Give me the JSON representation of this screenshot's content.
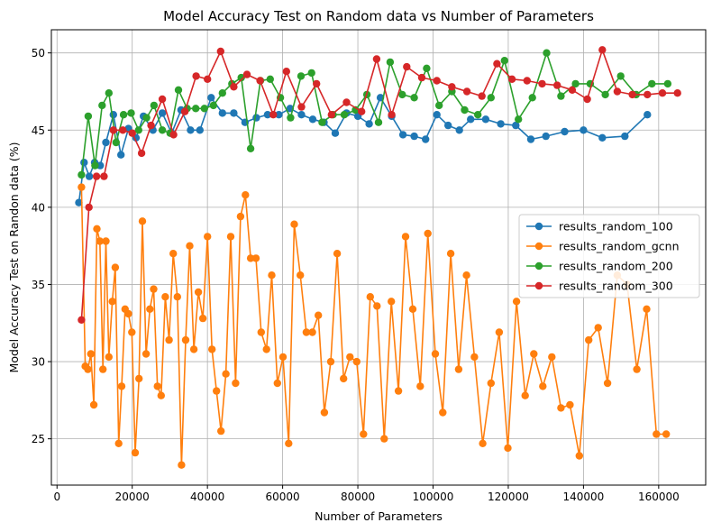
{
  "chart_data": {
    "type": "line",
    "title": "Model Accuracy Test on Random data vs Number of Parameters",
    "xlabel": "Number of Parameters",
    "ylabel": "Model Accuracy Test on Randon data (%)",
    "xlim": [
      -1500,
      172500
    ],
    "ylim": [
      22,
      51.5
    ],
    "xticks": [
      0,
      20000,
      40000,
      60000,
      80000,
      100000,
      120000,
      140000,
      160000
    ],
    "yticks": [
      25,
      30,
      35,
      40,
      45,
      50
    ],
    "grid": true,
    "legend_position": "center-right",
    "series": [
      {
        "name": "results_random_100",
        "color": "#1f77b4",
        "x": [
          5800,
          7200,
          8600,
          10000,
          11500,
          13000,
          15000,
          17000,
          19000,
          21000,
          23000,
          25500,
          28000,
          30500,
          33000,
          35500,
          38000,
          41000,
          44000,
          47000,
          50000,
          53000,
          56000,
          59000,
          62000,
          65000,
          68000,
          71000,
          74000,
          77000,
          80000,
          83000,
          86000,
          89000,
          92000,
          95000,
          98000,
          101000,
          104000,
          107000,
          110000,
          114000,
          118000,
          122000,
          126000,
          130000,
          135000,
          140000,
          145000,
          151000,
          157000
        ],
        "y": [
          40.3,
          42.9,
          42.0,
          42.9,
          42.7,
          44.2,
          46.0,
          43.4,
          45.1,
          44.5,
          45.9,
          45.0,
          46.1,
          44.8,
          46.3,
          45.0,
          45.0,
          47.1,
          46.1,
          46.1,
          45.5,
          45.8,
          46.0,
          46.0,
          46.4,
          46.0,
          45.7,
          45.5,
          44.8,
          46.1,
          45.9,
          45.4,
          47.1,
          45.9,
          44.7,
          44.6,
          44.4,
          46.0,
          45.3,
          45.0,
          45.7,
          45.7,
          45.4,
          45.3,
          44.4,
          44.6,
          44.9,
          45.0,
          44.5,
          44.6,
          46.0
        ]
      },
      {
        "name": "results_random_gcnn",
        "color": "#ff7f0e",
        "x": [
          6500,
          7500,
          8200,
          9000,
          9800,
          10600,
          11400,
          12200,
          13000,
          13800,
          14700,
          15500,
          16400,
          17200,
          18100,
          19000,
          19900,
          20800,
          21800,
          22700,
          23700,
          24700,
          25700,
          26700,
          27700,
          28800,
          29800,
          30900,
          32000,
          33100,
          34200,
          35300,
          36400,
          37600,
          38800,
          40000,
          41200,
          42400,
          43600,
          44900,
          46200,
          47500,
          48800,
          50100,
          51500,
          52900,
          54300,
          55700,
          57100,
          58600,
          60100,
          61600,
          63100,
          64700,
          66300,
          67900,
          69500,
          71100,
          72800,
          74500,
          76200,
          77900,
          79700,
          81500,
          83300,
          85100,
          87000,
          88900,
          90800,
          92700,
          94600,
          96600,
          98600,
          100600,
          102600,
          104700,
          106800,
          108900,
          111000,
          113200,
          115400,
          117600,
          119900,
          122200,
          124500,
          126800,
          129200,
          131600,
          134000,
          136400,
          138900,
          141400,
          143900,
          146400,
          149000,
          151600,
          154200,
          156800,
          159400,
          162000
        ],
        "y": [
          41.3,
          29.7,
          29.5,
          30.5,
          27.2,
          38.6,
          37.8,
          29.5,
          37.8,
          30.3,
          33.9,
          36.1,
          24.7,
          28.4,
          33.4,
          33.1,
          31.9,
          24.1,
          28.9,
          39.1,
          30.5,
          33.4,
          34.7,
          28.4,
          27.8,
          34.2,
          31.4,
          37.0,
          34.2,
          23.3,
          31.4,
          37.5,
          30.8,
          34.5,
          32.8,
          38.1,
          30.8,
          28.1,
          25.5,
          29.2,
          38.1,
          28.6,
          39.4,
          40.8,
          36.7,
          36.7,
          31.9,
          30.8,
          35.6,
          28.6,
          30.3,
          24.7,
          38.9,
          35.6,
          31.9,
          31.9,
          33.0,
          26.7,
          30.0,
          37.0,
          28.9,
          30.3,
          30.0,
          25.3,
          34.2,
          33.6,
          25.0,
          33.9,
          28.1,
          38.1,
          33.4,
          28.4,
          38.3,
          30.5,
          26.7,
          37.0,
          29.5,
          35.6,
          30.3,
          24.7,
          28.6,
          31.9,
          24.4,
          33.9,
          27.8,
          30.5,
          28.4,
          30.3,
          27.0,
          27.2,
          23.9,
          31.4,
          32.2,
          28.6,
          35.6,
          35.0,
          29.5,
          33.4,
          25.3,
          25.3
        ]
      },
      {
        "name": "results_random_200",
        "color": "#2ca02c",
        "x": [
          6500,
          8300,
          10100,
          12000,
          13800,
          15700,
          17700,
          19700,
          21700,
          23800,
          25800,
          28000,
          30100,
          32300,
          34600,
          36900,
          39200,
          41600,
          44000,
          46500,
          49000,
          51500,
          54100,
          56700,
          59400,
          62100,
          64900,
          67700,
          70500,
          73400,
          76400,
          79400,
          82400,
          85500,
          88600,
          91800,
          95000,
          98300,
          101600,
          105000,
          108400,
          111900,
          115400,
          119000,
          122700,
          126400,
          130200,
          134000,
          137900,
          141800,
          145800,
          149900,
          154000,
          158200,
          162400
        ],
        "y": [
          42.1,
          45.9,
          42.7,
          46.6,
          47.4,
          44.2,
          46.0,
          46.1,
          45.0,
          45.8,
          46.6,
          45.0,
          44.8,
          47.6,
          46.4,
          46.4,
          46.4,
          46.6,
          47.4,
          48.0,
          48.4,
          43.8,
          48.2,
          48.3,
          47.1,
          45.8,
          48.5,
          48.7,
          45.5,
          46.0,
          46.0,
          46.3,
          47.3,
          45.5,
          49.4,
          47.3,
          47.1,
          49.0,
          46.6,
          47.5,
          46.3,
          46.0,
          47.1,
          49.5,
          45.7,
          47.1,
          50.0,
          47.2,
          48.0,
          48.0,
          47.3,
          48.5,
          47.3,
          48.0,
          48.0
        ]
      },
      {
        "name": "results_random_300",
        "color": "#d62728",
        "x": [
          6500,
          8500,
          10500,
          12500,
          15000,
          17500,
          20000,
          22500,
          25000,
          28000,
          31000,
          34000,
          37000,
          40000,
          43500,
          47000,
          50500,
          54000,
          57500,
          61000,
          65000,
          69000,
          73000,
          77000,
          81000,
          85000,
          89000,
          93000,
          97000,
          101000,
          105000,
          109000,
          113000,
          117000,
          121000,
          125000,
          129000,
          133000,
          137000,
          141000,
          145000,
          149000,
          153000,
          157000,
          161000,
          165000
        ],
        "y": [
          32.7,
          40.0,
          42.0,
          42.0,
          45.0,
          45.0,
          44.8,
          43.5,
          45.3,
          47.0,
          44.7,
          46.2,
          48.5,
          48.3,
          50.1,
          47.8,
          48.6,
          48.2,
          46.0,
          48.8,
          46.5,
          48.0,
          46.0,
          46.8,
          46.2,
          49.6,
          46.0,
          49.1,
          48.4,
          48.2,
          47.8,
          47.5,
          47.2,
          49.3,
          48.3,
          48.2,
          48.0,
          47.9,
          47.6,
          47.0,
          50.2,
          47.5,
          47.3,
          47.3,
          47.4,
          47.4
        ]
      }
    ]
  }
}
